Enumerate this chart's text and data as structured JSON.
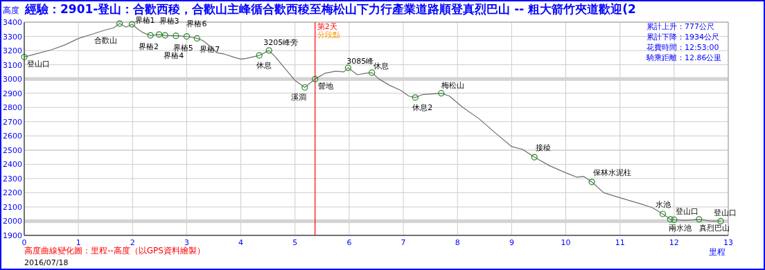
{
  "chart_data": {
    "type": "line",
    "title": "經驗：2901-登山：合歡西稜，合歡山主峰循合歡西稜至梅松山下力行產業道路順登真烈巴山 -- 粗大箭竹夾道歡迎(2",
    "xlabel": "里程",
    "ylabel": "高度",
    "xlim": [
      0,
      13
    ],
    "xticks": [
      0,
      1,
      2,
      3,
      4,
      5,
      6,
      7,
      8,
      9,
      10,
      11,
      12,
      13
    ],
    "ylim": [
      1900,
      3400
    ],
    "yticks": [
      1900,
      2000,
      2100,
      2200,
      2300,
      2400,
      2500,
      2600,
      2700,
      2800,
      2900,
      3000,
      3100,
      3200,
      3300,
      3400
    ],
    "grid": true,
    "series": [
      {
        "type": "line",
        "color": "#6e6e6e",
        "marker": "none",
        "x": [
          0,
          0.25,
          0.5,
          0.75,
          1.0,
          1.25,
          1.5,
          1.65,
          1.76,
          1.88,
          1.99,
          2.1,
          2.2,
          2.33,
          2.49,
          2.6,
          2.8,
          3.0,
          3.19,
          3.3,
          3.45,
          3.55,
          3.7,
          3.9,
          4.0,
          4.1,
          4.34,
          4.52,
          4.65,
          4.8,
          5.0,
          5.18,
          5.37,
          5.55,
          5.75,
          5.9,
          5.98,
          6.15,
          6.3,
          6.42,
          6.55,
          6.75,
          6.95,
          7.1,
          7.22,
          7.35,
          7.55,
          7.7,
          7.85,
          8.1,
          8.4,
          8.7,
          9.0,
          9.2,
          9.42,
          9.7,
          10.0,
          10.2,
          10.33,
          10.48,
          10.7,
          11.0,
          11.4,
          11.6,
          11.79,
          11.93,
          12.0,
          12.2,
          12.46,
          12.7,
          12.86
        ],
        "values": [
          3155,
          3180,
          3205,
          3240,
          3285,
          3315,
          3345,
          3360,
          3390,
          3365,
          3385,
          3350,
          3325,
          3307,
          3313,
          3307,
          3304,
          3300,
          3286,
          3270,
          3225,
          3185,
          3175,
          3150,
          3140,
          3145,
          3166,
          3201,
          3150,
          3080,
          2990,
          2941,
          3000,
          3040,
          3055,
          3050,
          3079,
          3030,
          3040,
          3045,
          3000,
          2955,
          2920,
          2880,
          2870,
          2890,
          2895,
          2900,
          2880,
          2800,
          2720,
          2620,
          2525,
          2505,
          2450,
          2390,
          2340,
          2310,
          2315,
          2276,
          2200,
          2165,
          2120,
          2095,
          2051,
          2013,
          2010,
          2005,
          2013,
          2000,
          2001
        ]
      },
      {
        "type": "scatter",
        "color": "#1a8a1a",
        "marker": "circle",
        "x": [
          0,
          1.76,
          1.99,
          2.33,
          2.49,
          2.6,
          2.8,
          3.0,
          3.19,
          4.34,
          4.52,
          5.18,
          5.37,
          5.98,
          6.42,
          7.22,
          7.7,
          9.42,
          10.48,
          11.79,
          11.93,
          12.0,
          12.46,
          12.86
        ],
        "values": [
          3155,
          3390,
          3385,
          3307,
          3313,
          3307,
          3304,
          3300,
          3286,
          3166,
          3201,
          2941,
          3000,
          3079,
          3045,
          2870,
          2900,
          2450,
          2276,
          2051,
          2013,
          2010,
          2013,
          2000
        ]
      }
    ],
    "bands": [
      {
        "axis": "y",
        "from": 2987,
        "to": 3013,
        "color": "#d4d4d4"
      },
      {
        "axis": "y",
        "from": 2496,
        "to": 2504,
        "color": "#d4d4d4"
      },
      {
        "axis": "y",
        "from": 1987,
        "to": 2013,
        "color": "#d4d4d4"
      }
    ],
    "ref_lines": [
      {
        "axis": "x",
        "value": 5.37,
        "label": "第2天",
        "color": "#ff0000",
        "line_style": "solid"
      }
    ],
    "annotations": [
      {
        "text": "登山口",
        "x": 0,
        "y": 3155
      },
      {
        "text": "合歡山",
        "x": 1.76,
        "y": 3390
      },
      {
        "text": "界樁1",
        "x": 1.99,
        "y": 3385
      },
      {
        "text": "界樁2",
        "x": 2.33,
        "y": 3307
      },
      {
        "text": "界樁3",
        "x": 2.49,
        "y": 3313
      },
      {
        "text": "界樁4",
        "x": 2.6,
        "y": 3307
      },
      {
        "text": "界樁5",
        "x": 2.8,
        "y": 3304
      },
      {
        "text": "界樁6",
        "x": 3.0,
        "y": 3300
      },
      {
        "text": "界樁7",
        "x": 3.19,
        "y": 3286
      },
      {
        "text": "休息",
        "x": 4.34,
        "y": 3166
      },
      {
        "text": "3205峰旁",
        "x": 4.52,
        "y": 3201
      },
      {
        "text": "溪澗",
        "x": 5.18,
        "y": 2941
      },
      {
        "text": "營地",
        "x": 5.37,
        "y": 3000
      },
      {
        "text": "3085峰",
        "x": 5.98,
        "y": 3079
      },
      {
        "text": "休息",
        "x": 6.42,
        "y": 3045
      },
      {
        "text": "休息2",
        "x": 7.22,
        "y": 2870
      },
      {
        "text": "梅松山",
        "x": 7.7,
        "y": 2900
      },
      {
        "text": "接稜",
        "x": 9.42,
        "y": 2450
      },
      {
        "text": "保林水泥柱",
        "x": 10.48,
        "y": 2276
      },
      {
        "text": "水池",
        "x": 11.79,
        "y": 2051
      },
      {
        "text": "兩水池",
        "x": 11.93,
        "y": 2013
      },
      {
        "text": "登山口",
        "x": 12.0,
        "y": 2010
      },
      {
        "text": "真烈巴山",
        "x": 12.46,
        "y": 2013
      },
      {
        "text": "登山口",
        "x": 12.86,
        "y": 2000
      },
      {
        "text": "分段點",
        "x": 5.37
      },
      "累計上升：777公尺",
      "累計下降：1934公尺",
      "花費時間：12:53:00",
      "騎乘距離：12.86公里",
      "高度曲線變化圖：里程--高度（以GPS資料繪製）",
      "2016/07/18"
    ]
  }
}
